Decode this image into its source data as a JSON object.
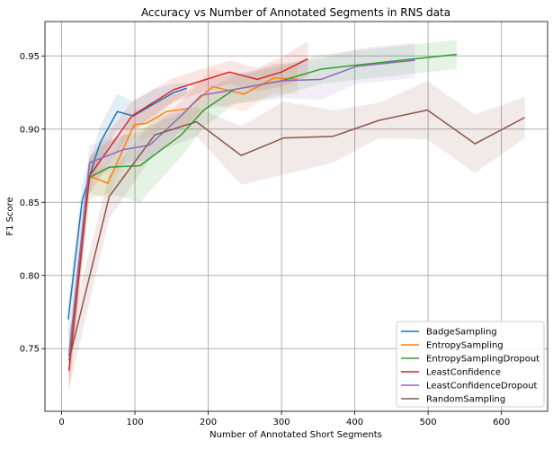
{
  "chart_data": {
    "type": "line",
    "title": "Accuracy vs Number of Annotated Segments in RNS data",
    "xlabel": "Number of Annotated Short Segments",
    "ylabel": "F1 Score",
    "xlim": [
      -22.7,
      663
    ],
    "ylim": [
      0.7072,
      0.9735
    ],
    "xticks": [
      0,
      100,
      200,
      300,
      400,
      500,
      600
    ],
    "yticks": [
      0.75,
      0.8,
      0.85,
      0.9,
      0.95
    ],
    "xtick_labels": [
      "0",
      "100",
      "200",
      "300",
      "400",
      "500",
      "600"
    ],
    "ytick_labels": [
      "0.75",
      "0.80",
      "0.85",
      "0.90",
      "0.95"
    ],
    "grid": true,
    "legend_position": "lower-right",
    "series": [
      {
        "name": "BadgeSampling",
        "color": "#1f77b4",
        "x": [
          9,
          28,
          45,
          53,
          76,
          98,
          125,
          153,
          171
        ],
        "y": [
          0.77,
          0.851,
          0.879,
          0.891,
          0.912,
          0.909,
          0.917,
          0.925,
          0.928
        ],
        "band": [
          0.012,
          0.012,
          0.01,
          0.012,
          0.012,
          0.01,
          0.01,
          0.006,
          0.004
        ]
      },
      {
        "name": "EntropySampling",
        "color": "#ff7f0e",
        "x": [
          10,
          38,
          63,
          99,
          116,
          143,
          172,
          206,
          249,
          290,
          322
        ],
        "y": [
          0.735,
          0.868,
          0.863,
          0.903,
          0.904,
          0.912,
          0.914,
          0.929,
          0.924,
          0.935,
          0.934
        ],
        "band": [
          0.015,
          0.012,
          0.01,
          0.01,
          0.01,
          0.01,
          0.012,
          0.012,
          0.012,
          0.01,
          0.01
        ]
      },
      {
        "name": "EntropySamplingDropout",
        "color": "#2ca02c",
        "x": [
          10,
          38,
          65,
          107,
          163,
          194,
          235,
          300,
          354,
          407,
          501,
          539
        ],
        "y": [
          0.745,
          0.867,
          0.874,
          0.875,
          0.896,
          0.913,
          0.927,
          0.933,
          0.941,
          0.944,
          0.949,
          0.951
        ],
        "band": [
          0.015,
          0.015,
          0.018,
          0.025,
          0.015,
          0.012,
          0.01,
          0.01,
          0.01,
          0.01,
          0.01,
          0.01
        ]
      },
      {
        "name": "LeastConfidence",
        "color": "#d62728",
        "x": [
          10,
          38,
          96,
          153,
          229,
          267,
          300,
          336
        ],
        "y": [
          0.735,
          0.868,
          0.909,
          0.927,
          0.939,
          0.934,
          0.939,
          0.948
        ],
        "band": [
          0.015,
          0.012,
          0.01,
          0.008,
          0.008,
          0.008,
          0.01,
          0.012
        ]
      },
      {
        "name": "LeastConfidenceDropout",
        "color": "#9467bd",
        "x": [
          10,
          38,
          84,
          120,
          165,
          190,
          235,
          300,
          354,
          403,
          482
        ],
        "y": [
          0.745,
          0.877,
          0.886,
          0.889,
          0.91,
          0.923,
          0.927,
          0.933,
          0.934,
          0.943,
          0.947
        ],
        "band": [
          0.015,
          0.012,
          0.01,
          0.01,
          0.01,
          0.01,
          0.01,
          0.012,
          0.014,
          0.012,
          0.012
        ]
      },
      {
        "name": "RandomSampling",
        "color": "#8c564b",
        "x": [
          10,
          65,
          127,
          184,
          245,
          303,
          370,
          433,
          499,
          564,
          632
        ],
        "y": [
          0.742,
          0.854,
          0.896,
          0.905,
          0.882,
          0.894,
          0.895,
          0.906,
          0.913,
          0.89,
          0.908
        ],
        "band": [
          0.02,
          0.015,
          0.012,
          0.01,
          0.02,
          0.025,
          0.018,
          0.012,
          0.02,
          0.02,
          0.014
        ]
      }
    ]
  }
}
